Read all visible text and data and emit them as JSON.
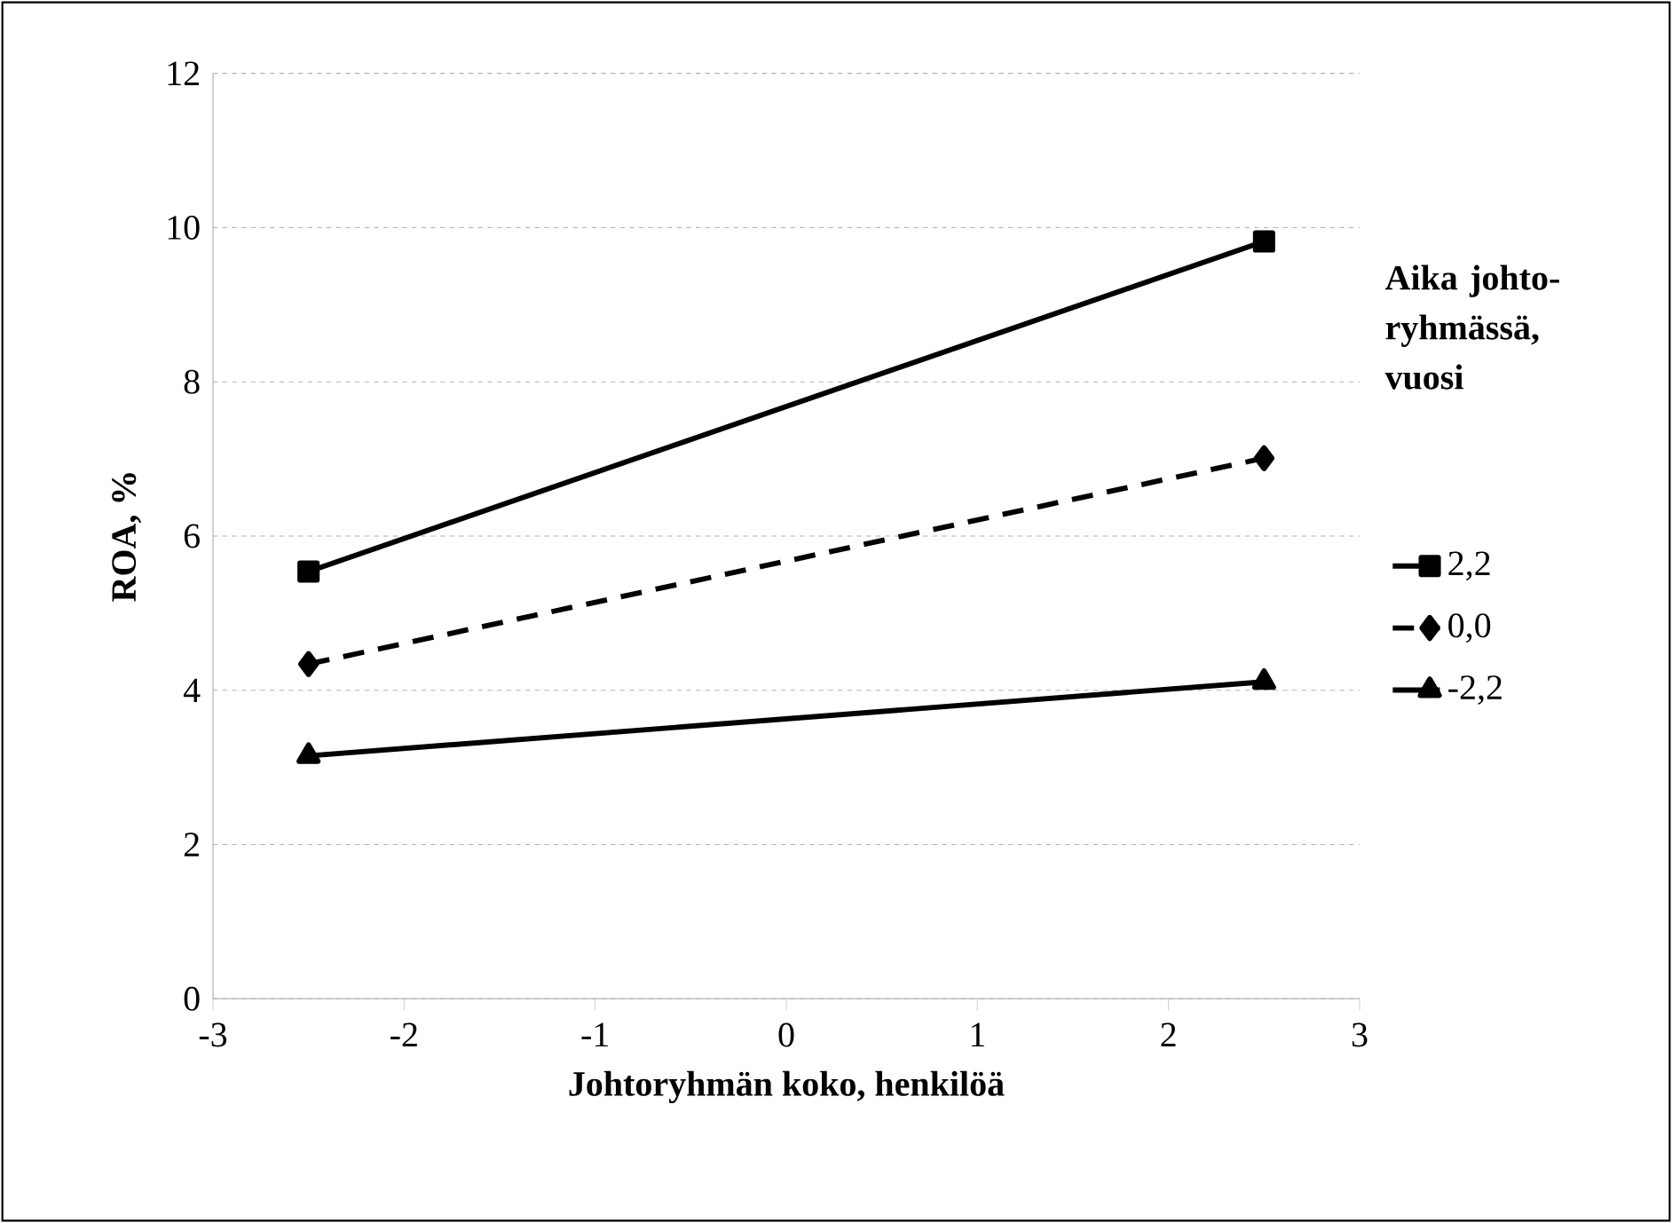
{
  "chart_data": {
    "type": "line",
    "xlabel": "Johtoryhmän koko, henkilöä",
    "ylabel": "ROA, %",
    "legend_title": "Aika johto-ryhmässä, vuosi",
    "xlim": [
      -3,
      3
    ],
    "xticks": [
      -3,
      -2,
      -1,
      0,
      1,
      2,
      3
    ],
    "ylim": [
      0,
      12
    ],
    "yticks": [
      0,
      2,
      4,
      6,
      8,
      10,
      12
    ],
    "grid": "y",
    "legend": "right",
    "x": [
      -2.5,
      2.5
    ],
    "series": [
      {
        "name": "2,2",
        "color": "#000000",
        "marker": "square",
        "line_style": "solid",
        "values": [
          5.54,
          9.82
        ]
      },
      {
        "name": "0,0",
        "color": "#000000",
        "marker": "diamond",
        "line_style": "dashed",
        "values": [
          4.34,
          7.01
        ]
      },
      {
        "name": "-2,2",
        "color": "#000000",
        "marker": "triangle",
        "line_style": "solid",
        "values": [
          3.15,
          4.11
        ]
      }
    ]
  }
}
